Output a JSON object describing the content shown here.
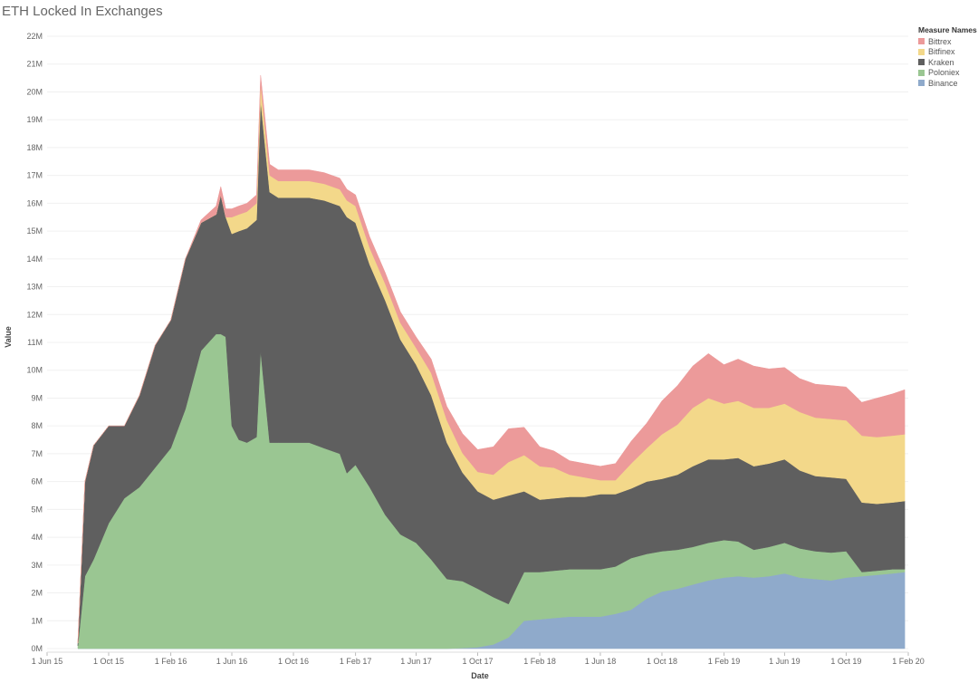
{
  "chart_data": {
    "type": "area",
    "title": "ETH Locked In Exchanges",
    "xlabel": "Date",
    "ylabel": "Value",
    "ylim": [
      0,
      22000000
    ],
    "y_ticks": [
      {
        "value": 0,
        "label": "0M"
      },
      {
        "value": 1000000,
        "label": "1M"
      },
      {
        "value": 2000000,
        "label": "2M"
      },
      {
        "value": 3000000,
        "label": "3M"
      },
      {
        "value": 4000000,
        "label": "4M"
      },
      {
        "value": 5000000,
        "label": "5M"
      },
      {
        "value": 6000000,
        "label": "6M"
      },
      {
        "value": 7000000,
        "label": "7M"
      },
      {
        "value": 8000000,
        "label": "8M"
      },
      {
        "value": 9000000,
        "label": "9M"
      },
      {
        "value": 10000000,
        "label": "10M"
      },
      {
        "value": 11000000,
        "label": "11M"
      },
      {
        "value": 12000000,
        "label": "12M"
      },
      {
        "value": 13000000,
        "label": "13M"
      },
      {
        "value": 14000000,
        "label": "14M"
      },
      {
        "value": 15000000,
        "label": "15M"
      },
      {
        "value": 16000000,
        "label": "16M"
      },
      {
        "value": 17000000,
        "label": "17M"
      },
      {
        "value": 18000000,
        "label": "18M"
      },
      {
        "value": 19000000,
        "label": "19M"
      },
      {
        "value": 20000000,
        "label": "20M"
      },
      {
        "value": 21000000,
        "label": "21M"
      },
      {
        "value": 22000000,
        "label": "22M"
      }
    ],
    "x_ticks": [
      {
        "date": "2015-06-01",
        "label": "1 Jun 15"
      },
      {
        "date": "2015-10-01",
        "label": "1 Oct 15"
      },
      {
        "date": "2016-02-01",
        "label": "1 Feb 16"
      },
      {
        "date": "2016-06-01",
        "label": "1 Jun 16"
      },
      {
        "date": "2016-10-01",
        "label": "1 Oct 16"
      },
      {
        "date": "2017-02-01",
        "label": "1 Feb 17"
      },
      {
        "date": "2017-06-01",
        "label": "1 Jun 17"
      },
      {
        "date": "2017-10-01",
        "label": "1 Oct 17"
      },
      {
        "date": "2018-02-01",
        "label": "1 Feb 18"
      },
      {
        "date": "2018-06-01",
        "label": "1 Jun 18"
      },
      {
        "date": "2018-10-01",
        "label": "1 Oct 18"
      },
      {
        "date": "2019-02-01",
        "label": "1 Feb 19"
      },
      {
        "date": "2019-06-01",
        "label": "1 Jun 19"
      },
      {
        "date": "2019-10-01",
        "label": "1 Oct 19"
      },
      {
        "date": "2020-02-01",
        "label": "1 Feb 20"
      }
    ],
    "legend": {
      "title": "Measure Names",
      "position": "top-right"
    },
    "grid": true,
    "stacking": "stacked",
    "x": [
      "2015-08-01",
      "2015-08-15",
      "2015-09-01",
      "2015-10-01",
      "2015-11-01",
      "2015-12-01",
      "2016-01-01",
      "2016-02-01",
      "2016-03-01",
      "2016-04-01",
      "2016-05-01",
      "2016-05-10",
      "2016-05-20",
      "2016-06-01",
      "2016-06-15",
      "2016-07-01",
      "2016-07-20",
      "2016-07-28",
      "2016-08-15",
      "2016-09-01",
      "2016-10-01",
      "2016-11-01",
      "2016-12-01",
      "2017-01-01",
      "2017-01-15",
      "2017-02-01",
      "2017-03-01",
      "2017-04-01",
      "2017-05-01",
      "2017-06-01",
      "2017-07-01",
      "2017-08-01",
      "2017-09-01",
      "2017-10-01",
      "2017-11-01",
      "2017-12-01",
      "2018-01-01",
      "2018-02-01",
      "2018-03-01",
      "2018-04-01",
      "2018-05-01",
      "2018-06-01",
      "2018-07-01",
      "2018-08-01",
      "2018-09-01",
      "2018-10-01",
      "2018-11-01",
      "2018-12-01",
      "2019-01-01",
      "2019-02-01",
      "2019-03-01",
      "2019-04-01",
      "2019-05-01",
      "2019-06-01",
      "2019-07-01",
      "2019-08-01",
      "2019-09-01",
      "2019-10-01",
      "2019-11-01",
      "2019-12-01",
      "2020-01-01",
      "2020-01-25"
    ],
    "series": [
      {
        "name": "Binance",
        "color": "#8FAACB",
        "values": [
          0,
          0,
          0,
          0,
          0,
          0,
          0,
          0,
          0,
          0,
          0,
          0,
          0,
          0,
          0,
          0,
          0,
          0,
          0,
          0,
          0,
          0,
          0,
          0,
          0,
          0,
          0,
          0,
          0,
          0,
          0,
          0,
          20000,
          50000,
          150000,
          400000,
          1000000,
          1050000,
          1100000,
          1150000,
          1150000,
          1150000,
          1250000,
          1400000,
          1800000,
          2050000,
          2150000,
          2300000,
          2450000,
          2550000,
          2600000,
          2550000,
          2600000,
          2700000,
          2550000,
          2500000,
          2450000,
          2550000,
          2600000,
          2650000,
          2700000,
          2750000
        ]
      },
      {
        "name": "Poloniex",
        "color": "#9AC692",
        "values": [
          100000,
          2600000,
          3200000,
          4500000,
          5400000,
          5800000,
          6500000,
          7200000,
          8600000,
          10700000,
          11300000,
          11300000,
          11200000,
          8000000,
          7500000,
          7400000,
          7600000,
          10700000,
          7400000,
          7400000,
          7400000,
          7400000,
          7200000,
          7000000,
          6300000,
          6600000,
          5800000,
          4800000,
          4100000,
          3800000,
          3200000,
          2500000,
          2400000,
          2100000,
          1700000,
          1200000,
          1750000,
          1700000,
          1700000,
          1700000,
          1700000,
          1700000,
          1700000,
          1850000,
          1600000,
          1450000,
          1400000,
          1350000,
          1350000,
          1350000,
          1250000,
          1000000,
          1050000,
          1100000,
          1050000,
          1000000,
          1000000,
          950000,
          150000,
          150000,
          150000,
          100000
        ]
      },
      {
        "name": "Kraken",
        "color": "#5F5F5F",
        "values": [
          100000,
          3400000,
          4100000,
          3500000,
          2600000,
          3300000,
          4400000,
          4600000,
          5400000,
          4600000,
          4300000,
          5000000,
          4300000,
          6900000,
          7500000,
          7700000,
          7800000,
          9000000,
          9000000,
          8800000,
          8800000,
          8800000,
          8900000,
          8900000,
          9200000,
          8700000,
          8000000,
          7700000,
          7000000,
          6400000,
          5900000,
          4900000,
          3900000,
          3500000,
          3500000,
          3900000,
          2900000,
          2600000,
          2600000,
          2600000,
          2600000,
          2700000,
          2600000,
          2500000,
          2600000,
          2600000,
          2700000,
          2900000,
          3000000,
          2900000,
          3000000,
          3000000,
          3000000,
          3000000,
          2800000,
          2700000,
          2700000,
          2600000,
          2500000,
          2400000,
          2400000,
          2450000
        ]
      },
      {
        "name": "Bitfinex",
        "color": "#F3D88A",
        "values": [
          0,
          0,
          0,
          0,
          0,
          0,
          0,
          0,
          0,
          0,
          0,
          0,
          0,
          600000,
          600000,
          600000,
          600000,
          600000,
          600000,
          600000,
          600000,
          600000,
          600000,
          600000,
          600000,
          600000,
          600000,
          600000,
          600000,
          600000,
          800000,
          800000,
          700000,
          700000,
          900000,
          1200000,
          1300000,
          1200000,
          1100000,
          800000,
          700000,
          500000,
          500000,
          900000,
          1200000,
          1600000,
          1800000,
          2100000,
          2200000,
          2000000,
          2050000,
          2100000,
          2000000,
          2000000,
          2100000,
          2100000,
          2100000,
          2100000,
          2400000,
          2400000,
          2400000,
          2400000
        ]
      },
      {
        "name": "Bittrex",
        "color": "#EC9A9A",
        "values": [
          0,
          0,
          0,
          0,
          0,
          0,
          0,
          0,
          0,
          100000,
          300000,
          300000,
          300000,
          300000,
          300000,
          300000,
          300000,
          300000,
          400000,
          400000,
          400000,
          400000,
          400000,
          400000,
          400000,
          400000,
          400000,
          400000,
          400000,
          400000,
          500000,
          500000,
          700000,
          800000,
          1000000,
          1200000,
          1000000,
          700000,
          600000,
          500000,
          500000,
          500000,
          600000,
          800000,
          900000,
          1200000,
          1400000,
          1500000,
          1600000,
          1400000,
          1500000,
          1500000,
          1400000,
          1300000,
          1200000,
          1200000,
          1200000,
          1200000,
          1200000,
          1400000,
          1500000,
          1600000
        ]
      }
    ]
  }
}
